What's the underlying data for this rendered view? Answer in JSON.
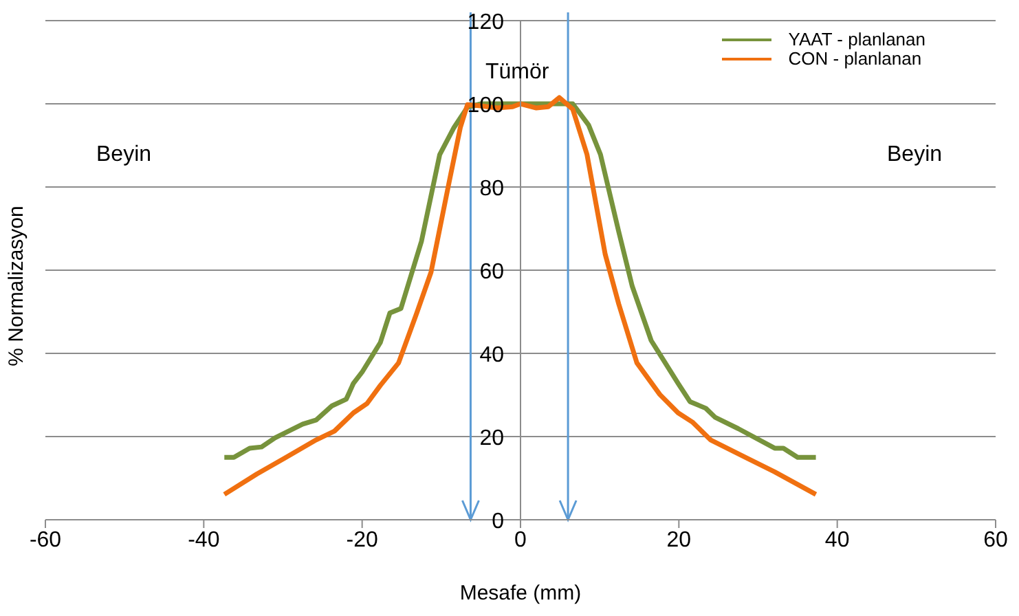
{
  "chart_data": {
    "type": "line",
    "xlabel": "Mesafe (mm)",
    "ylabel": "% Normalizasyon",
    "annotations": [
      "Beyin",
      "Tümör",
      "Beyin"
    ],
    "xlim": [
      -60,
      60
    ],
    "xticks": [
      -60,
      -40,
      -20,
      0,
      20,
      40,
      60
    ],
    "ylim": [
      0,
      120
    ],
    "yticks": [
      0,
      20,
      40,
      60,
      80,
      100,
      120
    ],
    "grid": "y",
    "legend": "top right",
    "marker": "none",
    "line_style": "solid",
    "ref_lines": [
      {
        "axis": "x",
        "value": -6.3,
        "color": "#5b9bd5"
      },
      {
        "axis": "x",
        "value": 6,
        "color": "#5b9bd5"
      }
    ],
    "series": [
      {
        "name": "YAAT - planlanan",
        "color": "#77933c",
        "x": [
          -37.4,
          -36.2,
          -34.2,
          -32.7,
          -31,
          -27.5,
          -25.8,
          -23.8,
          -22,
          -21.1,
          -20,
          -17.7,
          -16.5,
          -15.1,
          -12.5,
          -10.2,
          -8.4,
          -6.7,
          -5,
          0,
          5,
          6.6,
          8.6,
          10.1,
          12.4,
          14.1,
          16.5,
          19.9,
          21.4,
          23.4,
          24.6,
          27.5,
          32.1,
          33.2,
          35,
          37.3
        ],
        "values": [
          15,
          15,
          17.2,
          17.5,
          19.7,
          23,
          24,
          27.4,
          29,
          32.8,
          35.5,
          42.6,
          49.7,
          50.8,
          67,
          87.8,
          94.3,
          99.2,
          100,
          100,
          100,
          100,
          94.9,
          87.8,
          69.3,
          56.2,
          43.1,
          32.8,
          28.4,
          26.8,
          24.6,
          21.9,
          17.2,
          17.2,
          15,
          15
        ]
      },
      {
        "name": "CON - planlanan",
        "color": "#f07010",
        "x": [
          -37.4,
          -33.3,
          -29.8,
          -25.8,
          -23.5,
          -21.1,
          -19.4,
          -17.7,
          -15.4,
          -13.1,
          -11.3,
          -9,
          -7.6,
          -6.7,
          -5,
          -3,
          -1,
          0,
          2,
          3.5,
          4.9,
          6.6,
          8.4,
          10.7,
          12.4,
          14.7,
          17.6,
          19.9,
          21.7,
          24,
          28.6,
          32.1,
          37.3
        ],
        "values": [
          6.1,
          11,
          14.8,
          19.2,
          21.3,
          25.7,
          27.9,
          32.3,
          37.7,
          49.7,
          59.5,
          81.3,
          94.3,
          99.8,
          99.5,
          99,
          99.3,
          100,
          99,
          99.3,
          101.5,
          98.7,
          87.8,
          63.8,
          51.9,
          37.7,
          30.1,
          25.7,
          23.5,
          19.2,
          14.8,
          11.5,
          6.1
        ]
      }
    ]
  }
}
